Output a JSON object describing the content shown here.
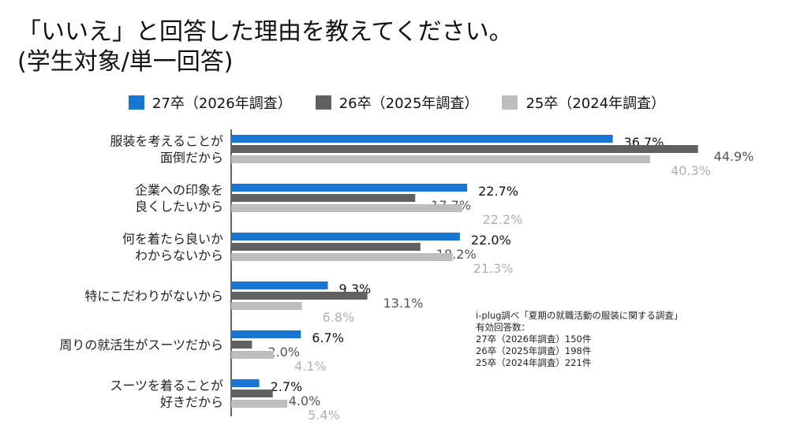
{
  "title_line1": "「いいえ」と回答した理由を教えてください。",
  "title_line2": "(学生対象/単一回答)",
  "colors": {
    "series_2026": "#1976d2",
    "series_2025": "#616161",
    "series_2024": "#bdbdbd",
    "label_2026": "#111111",
    "label_2025": "#555555",
    "label_2024": "#b0b0b0"
  },
  "chart_data": {
    "type": "bar",
    "orientation": "horizontal",
    "categories": [
      [
        "服装を考えることが",
        "面倒だから"
      ],
      [
        "企業への印象を",
        "良くしたいから"
      ],
      [
        "何を着たら良いか",
        "わからないから"
      ],
      [
        "特にこだわりがないから"
      ],
      [
        "周りの就活生がスーツだから"
      ],
      [
        "スーツを着ることが",
        "好きだから"
      ]
    ],
    "series": [
      {
        "name": "27卒（2026年調査）",
        "values": [
          36.7,
          22.7,
          22.0,
          9.3,
          6.7,
          2.7
        ],
        "labels": [
          "36.7%",
          "22.7%",
          "22.0%",
          "9.3%",
          "6.7%",
          "2.7%"
        ]
      },
      {
        "name": "26卒（2025年調査）",
        "values": [
          44.9,
          17.7,
          18.2,
          13.1,
          2.0,
          4.0
        ],
        "labels": [
          "44.9%",
          "17.7%",
          "18.2%",
          "13.1%",
          "2.0%",
          "4.0%"
        ]
      },
      {
        "name": "25卒（2024年調査）",
        "values": [
          40.3,
          22.2,
          21.3,
          6.8,
          4.1,
          5.4
        ],
        "labels": [
          "40.3%",
          "22.2%",
          "21.3%",
          "6.8%",
          "4.1%",
          "5.4%"
        ]
      }
    ],
    "legend_position": "top",
    "grid": false,
    "xlim": [
      0,
      45
    ]
  },
  "note": {
    "source": "i-plug調べ「夏期の就職活動の服装に関する調査」",
    "count_label": "有効回答数：",
    "lines": [
      "27卒（2026年調査）150件",
      "26卒（2025年調査）198件",
      "25卒（2024年調査）221件"
    ]
  }
}
